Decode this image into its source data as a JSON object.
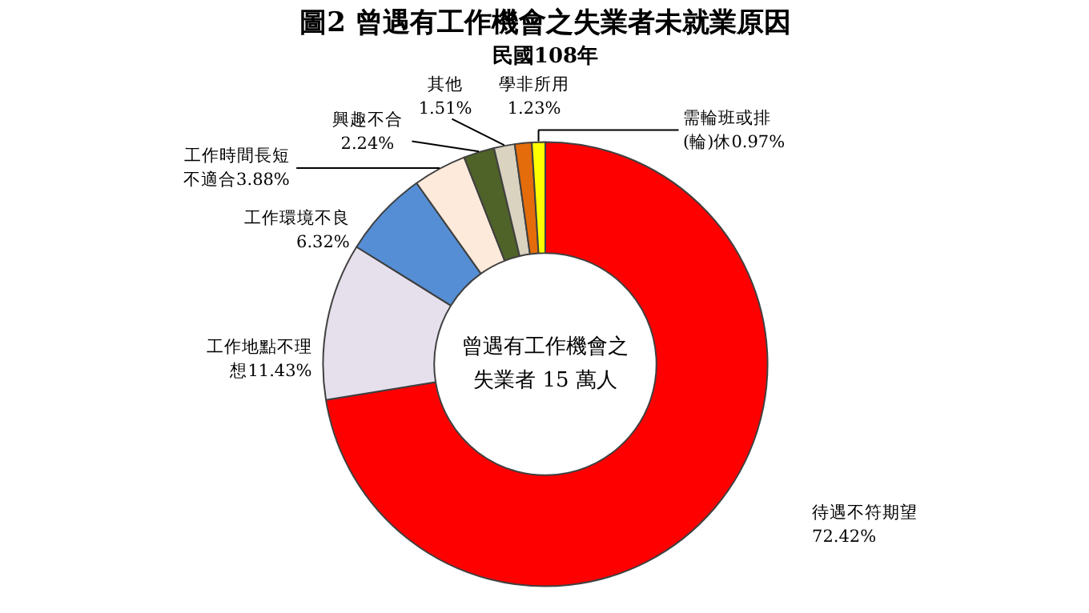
{
  "chart_data": {
    "type": "donut",
    "title": "圖2 曾遇有工作機會之失業者未就業原因",
    "subtitle": "民國108年",
    "categories": [
      "待遇不符期望",
      "工作地點不理想",
      "工作環境不良",
      "工作時間長短不適合",
      "興趣不合",
      "其他",
      "學非所用",
      "需輪班或排(輪)休"
    ],
    "values": [
      72.42,
      11.43,
      6.32,
      3.88,
      2.24,
      1.51,
      1.23,
      0.97
    ],
    "value_labels": [
      "72.42%",
      "11.43%",
      "6.32%",
      "3.88%",
      "2.24%",
      "1.51%",
      "1.23%",
      "0.97%"
    ],
    "colors": [
      "#ff0000",
      "#e6e0ec",
      "#558ed5",
      "#fdeada",
      "#4f6228",
      "#d9d3c0",
      "#e46c0a",
      "#ffff00"
    ],
    "annotations": [
      "曾遇有工作機會之失業者 15 萬人"
    ]
  }
}
